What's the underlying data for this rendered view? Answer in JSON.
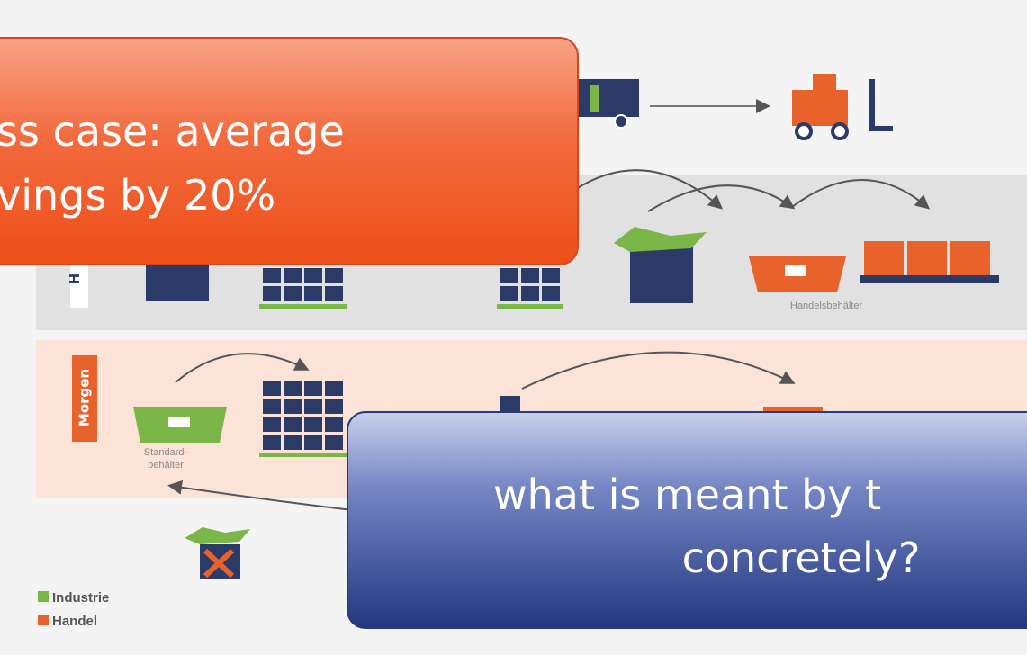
{
  "diagram": {
    "row_labels": [
      "H",
      "Morgen"
    ],
    "container_labels": [
      "Handelsbehälter",
      "Standard-",
      "behälter"
    ]
  },
  "legend": [
    {
      "label": "Industrie"
    },
    {
      "label": "Handel"
    }
  ],
  "callouts": [
    {
      "lines": [
        "ss case: average",
        "vings by 20%"
      ]
    },
    {
      "lines": [
        "what is meant by t",
        "concretely?"
      ]
    }
  ]
}
